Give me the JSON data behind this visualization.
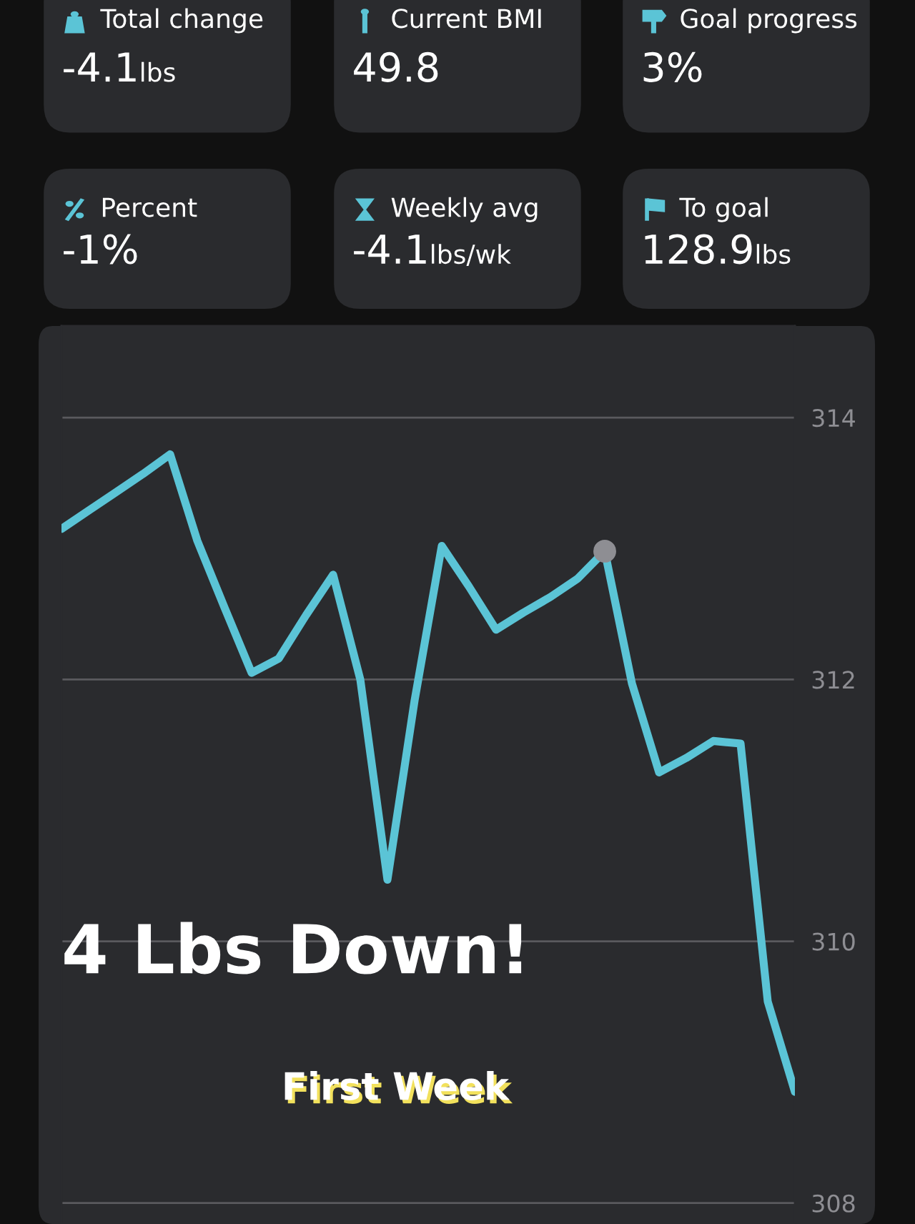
{
  "chart_data": {
    "type": "line",
    "categories": [
      null,
      null,
      null,
      null,
      null,
      null,
      null,
      null,
      null,
      null,
      null,
      null,
      null,
      null,
      null,
      null,
      null,
      null,
      null,
      null,
      null,
      null,
      null,
      null,
      null,
      null,
      null,
      null
    ],
    "ylim": [
      307.84,
      314.7
    ],
    "yticks": [
      308,
      310,
      312,
      314
    ],
    "grid": "y",
    "tick_labels": "y",
    "marker": "none",
    "line_style": "solid",
    "series": [
      {
        "color": "#5bc4d6",
        "values": [
          313.15,
          313.29,
          313.43,
          313.57,
          313.72,
          313.06,
          312.55,
          312.05,
          312.16,
          312.49,
          312.8,
          312.0,
          310.47,
          311.84,
          313.02,
          312.71,
          312.38,
          312.51,
          312.63,
          312.77,
          312.98,
          311.97,
          311.29,
          311.4,
          311.53,
          311.51,
          309.54,
          308.85
        ]
      }
    ],
    "annotations": [
      "Total change",
      "-4.1lbs",
      "Current BMI",
      "49.8",
      "Goal progress",
      "3%",
      "Percent",
      "-1%",
      "Weekly avg",
      "-4.1lbs/wk",
      "To goal",
      "128.9lbs",
      "4 Lbs Down!",
      "First Week"
    ]
  }
}
